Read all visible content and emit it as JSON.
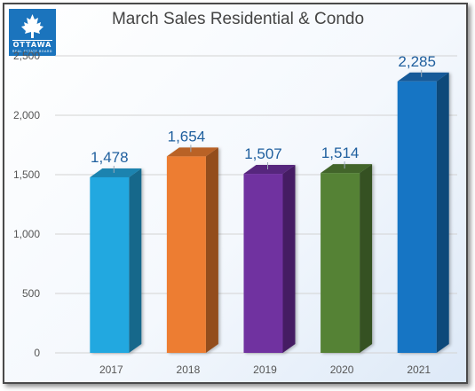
{
  "logo": {
    "word": "OTTAWA",
    "subtext": "REAL ESTATE BOARD"
  },
  "colors": {
    "grid": "#d3d3d3",
    "label": "#1f5f9e",
    "tick": "#555555",
    "title": "#444444"
  },
  "chart_data": {
    "type": "bar",
    "title": "March Sales Residential & Condo",
    "xlabel": "",
    "ylabel": "",
    "categories": [
      "2017",
      "2018",
      "2019",
      "2020",
      "2021"
    ],
    "values": [
      1478,
      1654,
      1507,
      1514,
      2285
    ],
    "value_labels": [
      "1,478",
      "1,654",
      "1,507",
      "1,514",
      "2,285"
    ],
    "bar_colors": [
      "#21a8e0",
      "#ed7d31",
      "#7030a0",
      "#548235",
      "#1874c4"
    ],
    "ylim": [
      0,
      2500
    ],
    "yticks": [
      0,
      500,
      1000,
      1500,
      2000,
      2500
    ],
    "ytick_labels": [
      "0",
      "500",
      "1,000",
      "1,500",
      "2,000",
      "2,500"
    ],
    "grid": true,
    "style": "3d-column",
    "legend": "none"
  }
}
